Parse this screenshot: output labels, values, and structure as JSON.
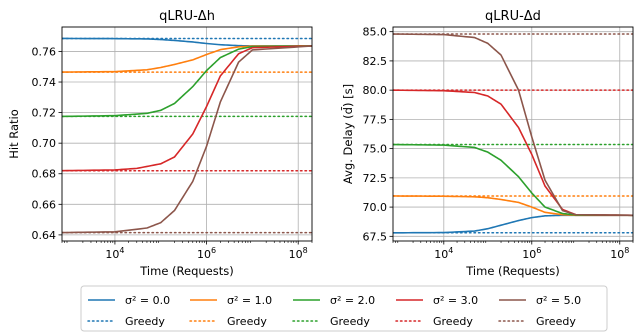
{
  "chart_data": [
    {
      "type": "line",
      "title": "qLRU-Δh",
      "xlabel": "Time (Requests)",
      "ylabel": "Hit Ratio",
      "xscale": "log",
      "xlim": [
        700,
        200000000
      ],
      "ylim": [
        0.636,
        0.776
      ],
      "xticks": [
        {
          "v": 10000,
          "base": "10",
          "exp": "4"
        },
        {
          "v": 1000000,
          "base": "10",
          "exp": "6"
        },
        {
          "v": 100000000,
          "base": "10",
          "exp": "8"
        }
      ],
      "yticks": [
        {
          "v": 0.64,
          "label": "0.64"
        },
        {
          "v": 0.66,
          "label": "0.66"
        },
        {
          "v": 0.68,
          "label": "0.68"
        },
        {
          "v": 0.7,
          "label": "0.70"
        },
        {
          "v": 0.72,
          "label": "0.72"
        },
        {
          "v": 0.74,
          "label": "0.74"
        },
        {
          "v": 0.76,
          "label": "0.76"
        }
      ],
      "grid": true,
      "series": [
        {
          "key": "s0",
          "style": "solid",
          "color": "#1f77b4",
          "x": [
            700,
            10000,
            50000,
            100000,
            200000,
            500000,
            1000000,
            2000000,
            5000000,
            10000000,
            200000000
          ],
          "y": [
            0.7685,
            0.7684,
            0.7682,
            0.7678,
            0.7672,
            0.7662,
            0.7652,
            0.7644,
            0.7638,
            0.7636,
            0.7636
          ]
        },
        {
          "key": "s1",
          "style": "solid",
          "color": "#ff7f0e",
          "x": [
            700,
            10000,
            50000,
            100000,
            200000,
            500000,
            1000000,
            2000000,
            5000000,
            10000000,
            200000000
          ],
          "y": [
            0.7465,
            0.7468,
            0.748,
            0.7495,
            0.7515,
            0.7545,
            0.758,
            0.7612,
            0.763,
            0.7635,
            0.7636
          ]
        },
        {
          "key": "s2",
          "style": "solid",
          "color": "#2ca02c",
          "x": [
            700,
            10000,
            50000,
            100000,
            200000,
            500000,
            1000000,
            2000000,
            5000000,
            10000000,
            200000000
          ],
          "y": [
            0.7175,
            0.718,
            0.7195,
            0.7215,
            0.726,
            0.737,
            0.7475,
            0.756,
            0.7615,
            0.7632,
            0.7636
          ]
        },
        {
          "key": "s3",
          "style": "solid",
          "color": "#d62728",
          "x": [
            700,
            10000,
            30000,
            100000,
            200000,
            500000,
            1000000,
            2000000,
            5000000,
            10000000,
            200000000
          ],
          "y": [
            0.682,
            0.6825,
            0.6835,
            0.6865,
            0.691,
            0.706,
            0.724,
            0.744,
            0.7585,
            0.7625,
            0.7636
          ]
        },
        {
          "key": "s5",
          "style": "solid",
          "color": "#8c564b",
          "x": [
            700,
            10000,
            50000,
            100000,
            200000,
            500000,
            1000000,
            2000000,
            5000000,
            10000000,
            200000000
          ],
          "y": [
            0.6415,
            0.642,
            0.6445,
            0.648,
            0.656,
            0.675,
            0.698,
            0.727,
            0.753,
            0.761,
            0.7636
          ]
        },
        {
          "key": "g0",
          "style": "dotted",
          "color": "#1f77b4",
          "x": [
            700,
            200000000
          ],
          "y": [
            0.7685,
            0.7685
          ]
        },
        {
          "key": "g1",
          "style": "dotted",
          "color": "#ff7f0e",
          "x": [
            700,
            200000000
          ],
          "y": [
            0.7465,
            0.7465
          ]
        },
        {
          "key": "g2",
          "style": "dotted",
          "color": "#2ca02c",
          "x": [
            700,
            200000000
          ],
          "y": [
            0.7175,
            0.7175
          ]
        },
        {
          "key": "g3",
          "style": "dotted",
          "color": "#d62728",
          "x": [
            700,
            200000000
          ],
          "y": [
            0.682,
            0.682
          ]
        },
        {
          "key": "g5",
          "style": "dotted",
          "color": "#8c564b",
          "x": [
            700,
            200000000
          ],
          "y": [
            0.6415,
            0.6415
          ]
        }
      ]
    },
    {
      "type": "line",
      "title": "qLRU-Δd",
      "xlabel": "Time (Requests)",
      "ylabel": "Avg. Delay (d̄) [s]",
      "xscale": "log",
      "xlim": [
        700,
        200000000
      ],
      "ylim": [
        67.1,
        85.4
      ],
      "xticks": [
        {
          "v": 10000,
          "base": "10",
          "exp": "4"
        },
        {
          "v": 1000000,
          "base": "10",
          "exp": "6"
        },
        {
          "v": 100000000,
          "base": "10",
          "exp": "8"
        }
      ],
      "yticks": [
        {
          "v": 67.5,
          "label": "67.5"
        },
        {
          "v": 70.0,
          "label": "70.0"
        },
        {
          "v": 72.5,
          "label": "72.5"
        },
        {
          "v": 75.0,
          "label": "75.0"
        },
        {
          "v": 77.5,
          "label": "77.5"
        },
        {
          "v": 80.0,
          "label": "80.0"
        },
        {
          "v": 82.5,
          "label": "82.5"
        },
        {
          "v": 85.0,
          "label": "85.0"
        }
      ],
      "grid": true,
      "series": [
        {
          "key": "s0",
          "style": "solid",
          "color": "#1f77b4",
          "x": [
            700,
            10000,
            50000,
            100000,
            200000,
            500000,
            1000000,
            2000000,
            5000000,
            10000000,
            200000000
          ],
          "y": [
            67.8,
            67.82,
            67.95,
            68.15,
            68.45,
            68.85,
            69.1,
            69.25,
            69.3,
            69.3,
            69.3
          ]
        },
        {
          "key": "s1",
          "style": "solid",
          "color": "#ff7f0e",
          "x": [
            700,
            10000,
            50000,
            100000,
            200000,
            500000,
            1000000,
            2000000,
            5000000,
            10000000,
            200000000
          ],
          "y": [
            70.95,
            70.93,
            70.88,
            70.8,
            70.65,
            70.4,
            70.0,
            69.55,
            69.35,
            69.3,
            69.3
          ]
        },
        {
          "key": "s2",
          "style": "solid",
          "color": "#2ca02c",
          "x": [
            700,
            10000,
            50000,
            100000,
            200000,
            500000,
            1000000,
            2000000,
            5000000,
            10000000,
            200000000
          ],
          "y": [
            75.35,
            75.3,
            75.1,
            74.7,
            74.0,
            72.6,
            71.2,
            70.0,
            69.45,
            69.32,
            69.3
          ]
        },
        {
          "key": "s3",
          "style": "solid",
          "color": "#d62728",
          "x": [
            700,
            10000,
            50000,
            100000,
            200000,
            500000,
            1000000,
            2000000,
            5000000,
            10000000,
            200000000
          ],
          "y": [
            80.0,
            79.95,
            79.8,
            79.5,
            78.8,
            76.8,
            74.5,
            71.8,
            69.8,
            69.35,
            69.3
          ]
        },
        {
          "key": "s5",
          "style": "solid",
          "color": "#8c564b",
          "x": [
            700,
            10000,
            50000,
            100000,
            200000,
            500000,
            1000000,
            2000000,
            5000000,
            10000000,
            200000000
          ],
          "y": [
            84.8,
            84.75,
            84.5,
            84.0,
            83.0,
            80.0,
            76.0,
            72.3,
            69.7,
            69.35,
            69.3
          ]
        },
        {
          "key": "g0",
          "style": "dotted",
          "color": "#1f77b4",
          "x": [
            700,
            200000000
          ],
          "y": [
            67.8,
            67.8
          ]
        },
        {
          "key": "g1",
          "style": "dotted",
          "color": "#ff7f0e",
          "x": [
            700,
            200000000
          ],
          "y": [
            70.95,
            70.95
          ]
        },
        {
          "key": "g2",
          "style": "dotted",
          "color": "#2ca02c",
          "x": [
            700,
            200000000
          ],
          "y": [
            75.35,
            75.35
          ]
        },
        {
          "key": "g3",
          "style": "dotted",
          "color": "#d62728",
          "x": [
            700,
            200000000
          ],
          "y": [
            80.0,
            80.0
          ]
        },
        {
          "key": "g5",
          "style": "dotted",
          "color": "#8c564b",
          "x": [
            700,
            200000000
          ],
          "y": [
            84.8,
            84.8
          ]
        }
      ]
    }
  ],
  "legend": {
    "placement": "bottom",
    "entries": [
      {
        "label": "σ² = 0.0",
        "style": "solid",
        "color": "#1f77b4"
      },
      {
        "label": "σ² = 1.0",
        "style": "solid",
        "color": "#ff7f0e"
      },
      {
        "label": "σ² = 2.0",
        "style": "solid",
        "color": "#2ca02c"
      },
      {
        "label": "σ² = 3.0",
        "style": "solid",
        "color": "#d62728"
      },
      {
        "label": "σ² = 5.0",
        "style": "solid",
        "color": "#8c564b"
      },
      {
        "label": "Greedy",
        "style": "dotted",
        "color": "#1f77b4"
      },
      {
        "label": "Greedy",
        "style": "dotted",
        "color": "#ff7f0e"
      },
      {
        "label": "Greedy",
        "style": "dotted",
        "color": "#2ca02c"
      },
      {
        "label": "Greedy",
        "style": "dotted",
        "color": "#d62728"
      },
      {
        "label": "Greedy",
        "style": "dotted",
        "color": "#8c564b"
      }
    ]
  }
}
